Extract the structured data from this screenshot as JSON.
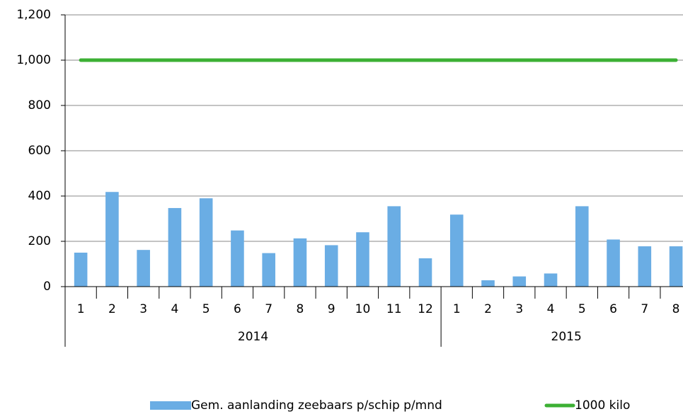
{
  "chart_data": {
    "type": "bar",
    "category_groups": [
      {
        "name": "2014",
        "categories": [
          "1",
          "2",
          "3",
          "4",
          "5",
          "6",
          "7",
          "8",
          "9",
          "10",
          "11",
          "12"
        ]
      },
      {
        "name": "2015",
        "categories": [
          "1",
          "2",
          "3",
          "4",
          "5",
          "6",
          "7",
          "8"
        ]
      }
    ],
    "series": [
      {
        "name": "Gem. aanlanding zeebaars p/schip p/mnd",
        "type": "bar",
        "color": "#6aade4",
        "values": [
          150,
          418,
          162,
          347,
          390,
          248,
          148,
          213,
          183,
          240,
          355,
          125,
          318,
          28,
          45,
          58,
          355,
          208,
          178,
          178
        ]
      },
      {
        "name": "1000 kilo",
        "type": "line",
        "color": "#3cb034",
        "values": [
          1000,
          1000,
          1000,
          1000,
          1000,
          1000,
          1000,
          1000,
          1000,
          1000,
          1000,
          1000,
          1000,
          1000,
          1000,
          1000,
          1000,
          1000,
          1000,
          1000
        ]
      }
    ],
    "ylim": [
      0,
      1200
    ],
    "yticks": [
      0,
      200,
      400,
      600,
      800,
      {
        "value": 1000,
        "label": "1,000"
      },
      {
        "value": 1200,
        "label": "1,200"
      }
    ],
    "grid": true,
    "legend": "bottom"
  }
}
